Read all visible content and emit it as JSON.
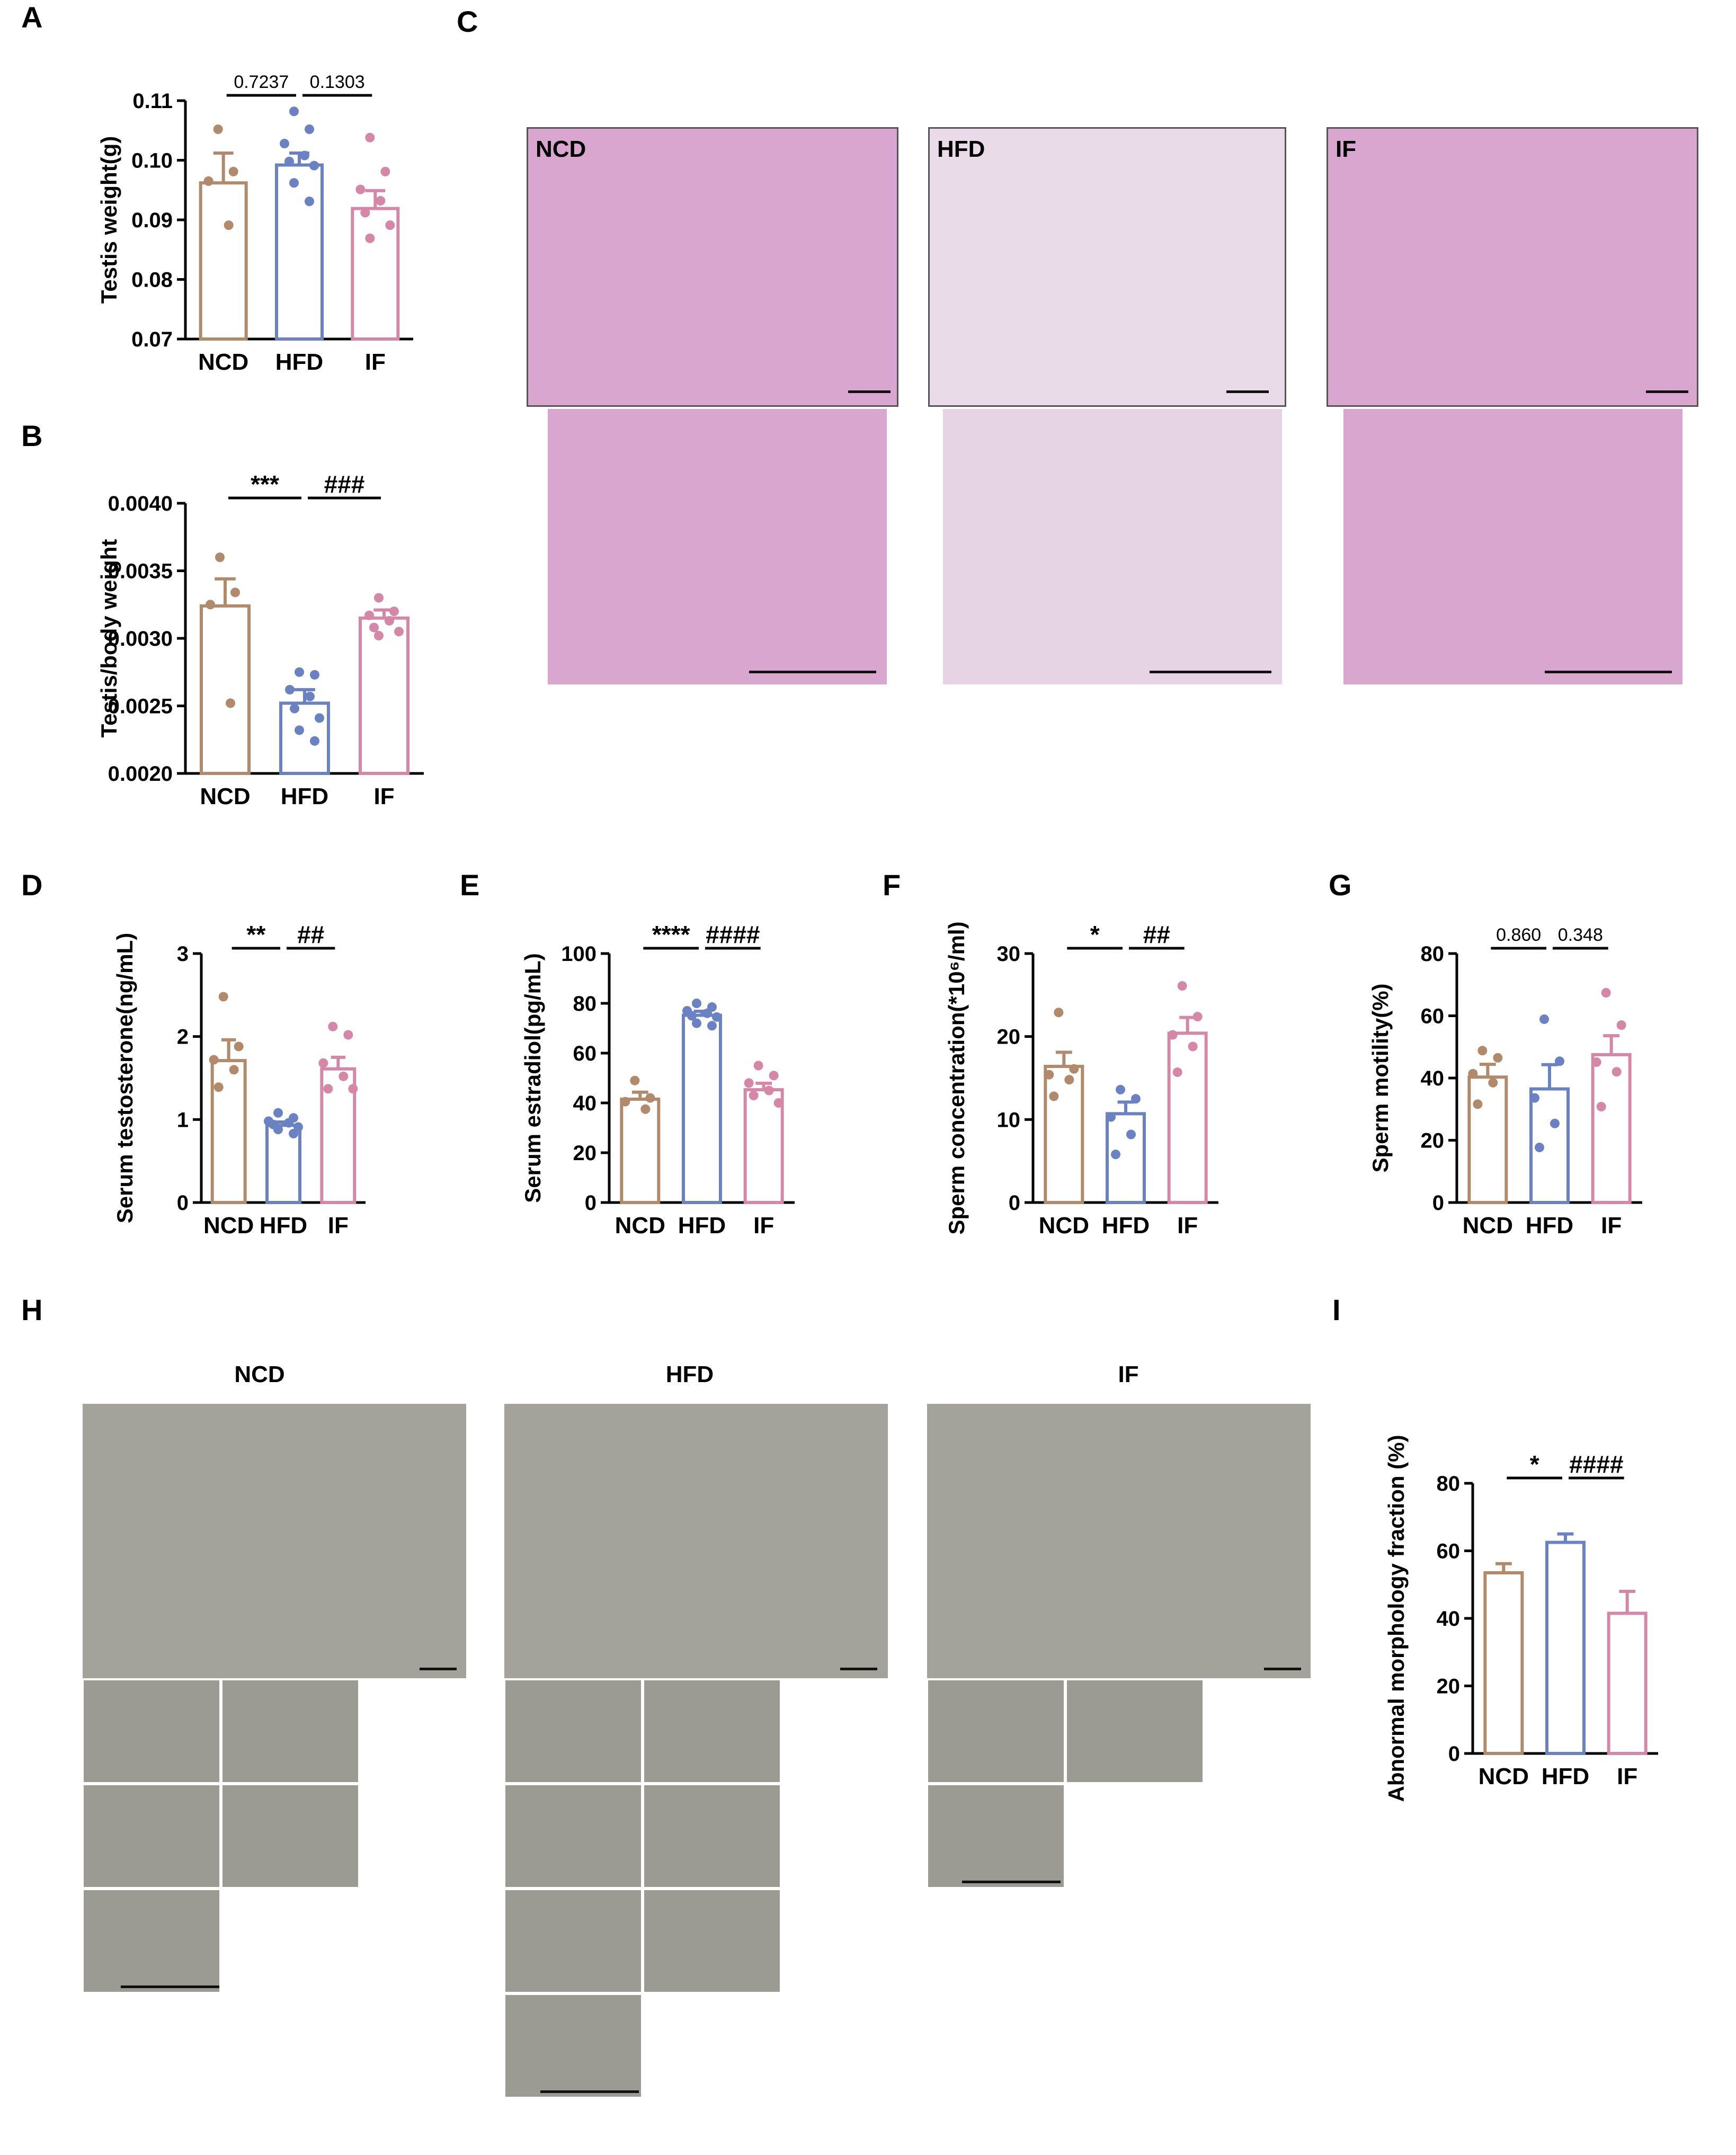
{
  "panels": [
    "A",
    "B",
    "C",
    "D",
    "E",
    "F",
    "G",
    "H",
    "I"
  ],
  "colors": {
    "NCD": "#b08a6a",
    "HFD": "#6a82c2",
    "IF": "#d487a6"
  },
  "micrograph": {
    "groups": [
      "NCD",
      "HFD",
      "IF"
    ]
  },
  "sperm_images": {
    "groups": [
      "NCD",
      "HFD",
      "IF"
    ]
  },
  "chart_data": [
    {
      "id": "A",
      "type": "bar",
      "categories": [
        "NCD",
        "HFD",
        "IF"
      ],
      "values": [
        0.0962,
        0.0992,
        0.0919
      ],
      "errors": [
        0.005,
        0.002,
        0.003
      ],
      "points": [
        [
          0.1052,
          0.0981,
          0.0965,
          0.0891
        ],
        [
          0.1082,
          0.1052,
          0.1028,
          0.1008,
          0.0998,
          0.0991,
          0.0962,
          0.0931
        ],
        [
          0.1038,
          0.0981,
          0.0951,
          0.0932,
          0.0912,
          0.0891,
          0.0869
        ]
      ],
      "ylabel": "Testis weight(g)",
      "ylim": [
        0.07,
        0.11
      ],
      "ticks": [
        "0.07",
        "0.08",
        "0.09",
        "0.10",
        "0.11"
      ],
      "significance": [
        "0.7237",
        "0.1303"
      ]
    },
    {
      "id": "B",
      "type": "bar",
      "categories": [
        "NCD",
        "HFD",
        "IF"
      ],
      "values": [
        0.00324,
        0.00252,
        0.00315
      ],
      "errors": [
        0.0002,
        0.0001,
        6e-05
      ],
      "points": [
        [
          0.0036,
          0.00334,
          0.00325,
          0.00252
        ],
        [
          0.00275,
          0.00273,
          0.00262,
          0.00257,
          0.00248,
          0.00241,
          0.00232,
          0.00224
        ],
        [
          0.0033,
          0.0032,
          0.00317,
          0.00313,
          0.00308,
          0.00305,
          0.00302
        ]
      ],
      "ylabel": "Testis/body weight",
      "ylim": [
        0.002,
        0.004
      ],
      "ticks": [
        "0.0020",
        "0.0025",
        "0.0030",
        "0.0035",
        "0.0040"
      ],
      "significance": [
        "***",
        "###"
      ]
    },
    {
      "id": "D",
      "type": "bar",
      "categories": [
        "NCD",
        "HFD",
        "IF"
      ],
      "values": [
        1.71,
        0.93,
        1.61
      ],
      "errors": [
        0.25,
        0.04,
        0.14
      ],
      "points": [
        [
          2.48,
          1.88,
          1.72,
          1.6,
          1.39
        ],
        [
          1.08,
          1.02,
          0.98,
          0.96,
          0.94,
          0.91,
          0.88,
          0.83
        ],
        [
          2.12,
          2.02,
          1.68,
          1.52,
          1.37,
          1.37
        ]
      ],
      "ylabel": "Serum testosterone(ng/mL)",
      "ylim": [
        0,
        3
      ],
      "ticks": [
        "0",
        "1",
        "2",
        "3"
      ],
      "significance": [
        "**",
        "##"
      ]
    },
    {
      "id": "E",
      "type": "bar",
      "categories": [
        "NCD",
        "HFD",
        "IF"
      ],
      "values": [
        41.5,
        75.2,
        45.3
      ],
      "errors": [
        2.8,
        1.6,
        2.6
      ],
      "points": [
        [
          49,
          42,
          40.5,
          37.5
        ],
        [
          80,
          78.5,
          77,
          76,
          75,
          74.5,
          72,
          71
        ],
        [
          55,
          51,
          48,
          45,
          43,
          40
        ]
      ],
      "ylabel": "Serum estradiol(pg/mL)",
      "ylim": [
        0,
        100
      ],
      "ticks": [
        "0",
        "20",
        "40",
        "60",
        "80",
        "100"
      ],
      "significance": [
        "****",
        "####"
      ]
    },
    {
      "id": "F",
      "type": "bar",
      "categories": [
        "NCD",
        "HFD",
        "IF"
      ],
      "values": [
        16.4,
        10.7,
        20.4
      ],
      "errors": [
        1.7,
        1.4,
        1.9
      ],
      "points": [
        [
          22.9,
          16.1,
          15.4,
          14.8,
          12.8
        ],
        [
          13.6,
          12.5,
          10.3,
          8.2,
          5.8
        ],
        [
          26.1,
          22.4,
          20.2,
          18.8,
          15.7
        ]
      ],
      "ylabel": "Sperm concentration(*10⁶/ml)",
      "ylim": [
        0,
        30
      ],
      "ticks": [
        "0",
        "10",
        "20",
        "30"
      ],
      "significance": [
        "*",
        "##"
      ]
    },
    {
      "id": "G",
      "type": "bar",
      "categories": [
        "NCD",
        "HFD",
        "IF"
      ],
      "values": [
        40.3,
        36.5,
        47.5
      ],
      "errors": [
        4.1,
        7.8,
        6.1
      ],
      "points": [
        [
          48.8,
          46.5,
          41.4,
          38.5,
          31.6
        ],
        [
          58.9,
          45.4,
          33.6,
          25.4,
          17.7
        ],
        [
          67.4,
          57,
          45.1,
          42,
          30.8
        ]
      ],
      "ylabel": "Sperm motility(%)",
      "ylim": [
        0,
        80
      ],
      "ticks": [
        "0",
        "20",
        "40",
        "60",
        "80"
      ],
      "significance": [
        "0.860",
        "0.348"
      ]
    },
    {
      "id": "I",
      "type": "bar",
      "categories": [
        "NCD",
        "HFD",
        "IF"
      ],
      "values": [
        53.5,
        62.5,
        41.5
      ],
      "errors": [
        2.7,
        2.5,
        6.5
      ],
      "points": [
        [],
        [],
        []
      ],
      "ylabel": "Abnormal morphology fraction (%)",
      "ylim": [
        0,
        80
      ],
      "ticks": [
        "0",
        "20",
        "40",
        "60",
        "80"
      ],
      "significance": [
        "*",
        "####"
      ]
    }
  ]
}
